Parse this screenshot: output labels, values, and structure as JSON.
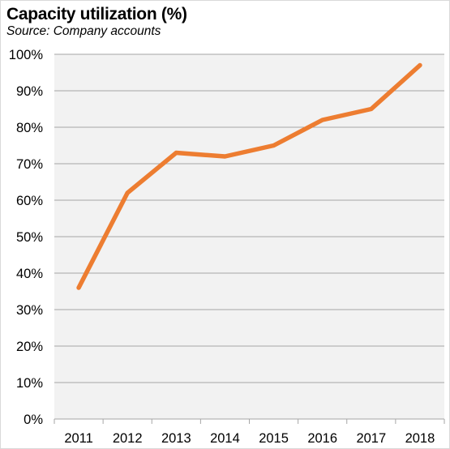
{
  "chart_data": {
    "type": "line",
    "title": "Capacity utilization (%)",
    "subtitle": "Source: Company accounts",
    "categories": [
      "2011",
      "2012",
      "2013",
      "2014",
      "2015",
      "2016",
      "2017",
      "2018"
    ],
    "series": [
      {
        "values": [
          36,
          62,
          73,
          72,
          75,
          82,
          85,
          97
        ],
        "color": "#ED7D31"
      }
    ],
    "ylim": [
      0,
      100
    ],
    "yticks": [
      0,
      10,
      20,
      30,
      40,
      50,
      60,
      70,
      80,
      90,
      100
    ],
    "ytick_labels": [
      "0%",
      "10%",
      "20%",
      "30%",
      "40%",
      "50%",
      "60%",
      "70%",
      "80%",
      "90%",
      "100%"
    ],
    "grid": true,
    "legend": "none",
    "plot_background": "#F2F2F2",
    "gridline_color": "#A6A6A6"
  }
}
